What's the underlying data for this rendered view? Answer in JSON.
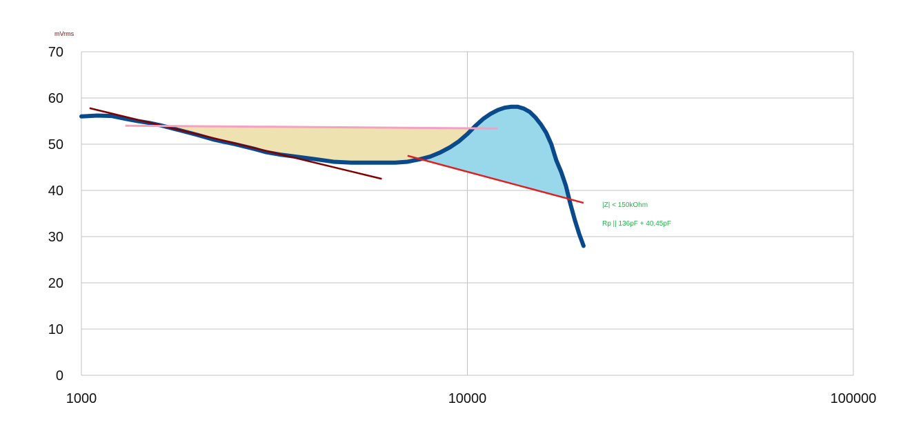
{
  "chart_data": {
    "type": "line",
    "ylabel": "mVrms",
    "xlabel": "",
    "x_scale": "log",
    "xlim": [
      1000,
      100000
    ],
    "ylim": [
      0,
      70
    ],
    "x_ticks": [
      "1000",
      "10000",
      "100000"
    ],
    "y_ticks": [
      "0",
      "10",
      "20",
      "30",
      "40",
      "50",
      "60",
      "70"
    ],
    "grid": true,
    "annotations": [
      "|Z| < 150kOhm",
      "Rp || 136pF + 40,45pF"
    ],
    "colors": {
      "series": "#0a4a8a",
      "trend_dark": "#800000",
      "trend_pink": "#f4a0c0",
      "trend_red": "#e02020",
      "fill_tan": "#eee2b0",
      "fill_blue": "#99d8ea",
      "annotation": "#22b14c",
      "grid": "#c0c0c0"
    },
    "series": [
      {
        "x": [
          1000,
          1100,
          1200,
          1300,
          1400,
          1500,
          1600,
          1800,
          2000,
          2200,
          2500,
          2800,
          3000,
          3300,
          3600,
          4000,
          4500,
          5000,
          5500,
          6000,
          6500,
          7000,
          7500,
          8000,
          8500,
          9000,
          9500,
          10000,
          10500,
          11000,
          11500,
          12000,
          12500,
          13000,
          13500,
          14000,
          14500,
          15000,
          15500,
          16000,
          16500,
          17000,
          17500,
          18000,
          18500,
          19000,
          19500,
          20000
        ],
        "y": [
          56,
          56.2,
          56.1,
          55.5,
          55,
          54.6,
          54.1,
          53,
          52,
          51,
          50,
          49,
          48.3,
          47.7,
          47.3,
          46.8,
          46.2,
          46,
          46,
          46,
          46,
          46.2,
          46.7,
          47.3,
          48.2,
          49.3,
          50.6,
          52.2,
          54,
          55.5,
          56.6,
          57.4,
          57.9,
          58.1,
          58.1,
          57.7,
          57,
          55.8,
          54.3,
          52.5,
          50,
          46.5,
          44,
          41,
          37,
          33.5,
          30.5,
          28
        ]
      },
      {
        "x": [
          1050,
          6000
        ],
        "y": [
          57.8,
          42.5
        ]
      },
      {
        "x": [
          1300,
          12000
        ],
        "y": [
          54,
          53.4
        ]
      },
      {
        "x": [
          7000,
          20000
        ],
        "y": [
          47.5,
          37.3
        ]
      }
    ]
  }
}
